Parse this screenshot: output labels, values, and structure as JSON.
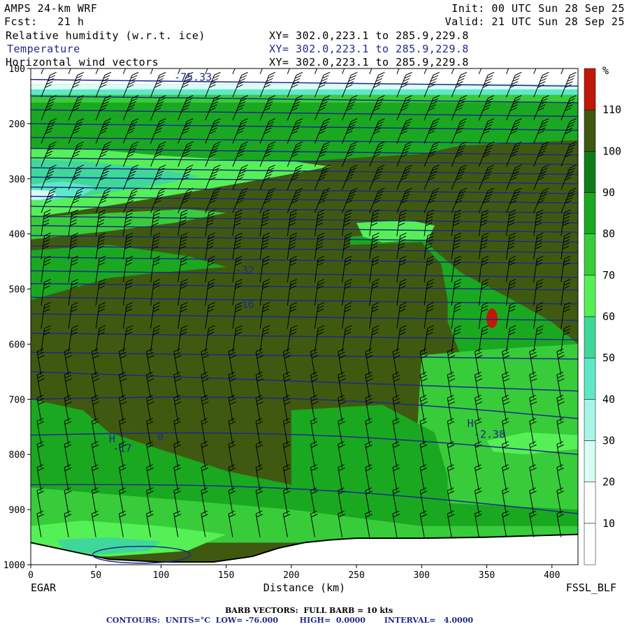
{
  "header": {
    "model": "AMPS 24-km WRF",
    "fcst": "Fcst:   21 h",
    "init": "Init: 00 UTC Sun 28 Sep 25",
    "valid": "Valid: 21 UTC Sun 28 Sep 25",
    "field1": "Relative humidity (w.r.t. ice)",
    "field2": "Temperature",
    "field3": "Horizontal wind vectors",
    "xy1": "XY= 302.0,223.1 to 285.9,229.8",
    "xy2": "XY= 302.0,223.1 to 285.9,229.8",
    "xy3": "XY= 302.0,223.1 to 285.9,229.8"
  },
  "footer": {
    "barb": "BARB VECTORS:  FULL BARB = 10 kts",
    "contours": "CONTOURS:  UNITS=°C  LOW= -76.000        HIGH=  0.0000       INTERVAL=   4.0000"
  },
  "chart_data": {
    "type": "heatmap",
    "xlabel": "Distance (km)",
    "ylabel": "",
    "x_ticks": [
      "0",
      "50",
      "100",
      "150",
      "200",
      "250",
      "300",
      "350",
      "400"
    ],
    "y_ticks": [
      "100",
      "200",
      "300",
      "400",
      "500",
      "600",
      "700",
      "800",
      "900",
      "1000"
    ],
    "xlim": [
      0,
      420
    ],
    "ylim": [
      1000,
      100
    ],
    "x_left_label": "EGAR",
    "x_right_label": "FSSL_BLF",
    "colorbar": {
      "unit": "%",
      "levels": [
        "10",
        "20",
        "30",
        "40",
        "50",
        "60",
        "70",
        "80",
        "90",
        "100",
        "110"
      ],
      "colors": [
        "#ffffff",
        "#ffffff",
        "#d8fff4",
        "#a8f5e8",
        "#5fe8c8",
        "#3fd89a",
        "#55f055",
        "#38cc3a",
        "#1aa821",
        "#0f7d17",
        "#3f5a10",
        "#c21808"
      ]
    },
    "contour_labels": [
      {
        "text": "-75.33",
        "x": 110,
        "p": 122
      },
      {
        "text": "-32",
        "x": 157,
        "p": 472
      },
      {
        "text": "-16",
        "x": 157,
        "p": 534
      },
      {
        "text": "0",
        "x": 97,
        "p": 774
      },
      {
        "text": "H",
        "x": 335,
        "p": 750
      },
      {
        "text": "-2.38",
        "x": 340,
        "p": 770
      },
      {
        "text": "-17",
        "x": 63,
        "p": 795
      },
      {
        "text": "H",
        "x": 60,
        "p": 778
      }
    ]
  }
}
